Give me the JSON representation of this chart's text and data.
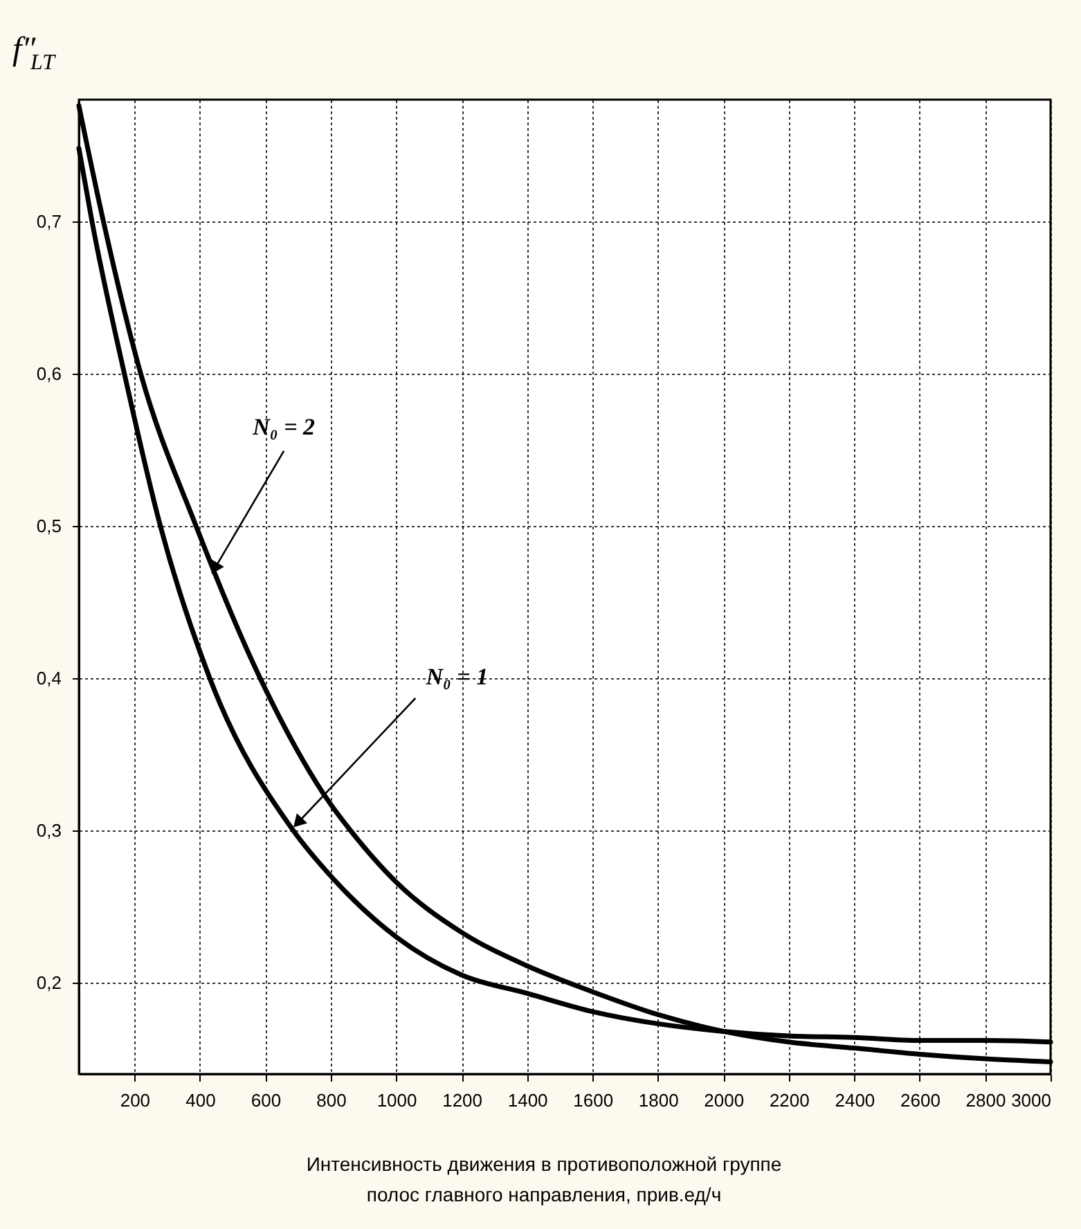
{
  "chart_data": {
    "type": "line",
    "xlabel": "Интенсивность движения в противоположной группе\nполос главного направления, прив.ед/ч",
    "ylabel": "f″$_{LT}$",
    "xlim": [
      30,
      3000
    ],
    "ylim": [
      0.14,
      0.78
    ],
    "xticks": [
      200,
      400,
      600,
      800,
      1000,
      1200,
      1400,
      1600,
      1800,
      2000,
      2200,
      2400,
      2600,
      2800,
      3000
    ],
    "yticks": [
      {
        "value": 0.2,
        "label": "0,2"
      },
      {
        "value": 0.3,
        "label": "0,3"
      },
      {
        "value": 0.4,
        "label": "0,4"
      },
      {
        "value": 0.5,
        "label": "0,5"
      },
      {
        "value": 0.6,
        "label": "0,6"
      },
      {
        "value": 0.7,
        "label": "0,7"
      }
    ],
    "grid": true,
    "marker": "none",
    "line_style": "solid",
    "series": [
      {
        "color": "#000000",
        "x": [
          30,
          70,
          169,
          279,
          430,
          685,
          800,
          1000,
          1200,
          1400,
          1600,
          1800,
          2000,
          2200,
          2400,
          2600,
          2800,
          3000
        ],
        "values": [
          0.748,
          0.7,
          0.6,
          0.5,
          0.4,
          0.3,
          0.27,
          0.23,
          0.205,
          0.193,
          0.181,
          0.173,
          0.168,
          0.165,
          0.164,
          0.162,
          0.162,
          0.161
        ]
      },
      {
        "color": "#000000",
        "x": [
          30,
          105,
          219,
          388,
          584,
          800,
          860,
          1000,
          1200,
          1400,
          1600,
          1800,
          2000,
          2200,
          2400,
          2600,
          2800,
          3000
        ],
        "values": [
          0.776,
          0.7,
          0.6,
          0.5,
          0.4,
          0.317,
          0.3,
          0.266,
          0.233,
          0.211,
          0.194,
          0.179,
          0.168,
          0.161,
          0.157,
          0.153,
          0.15,
          0.148
        ]
      }
    ],
    "annotations": [
      {
        "text": "N₀ = 2",
        "x": 445,
        "y": 0.472
      },
      {
        "text": "N₀ = 1",
        "x": 699,
        "y": 0.305
      }
    ]
  }
}
